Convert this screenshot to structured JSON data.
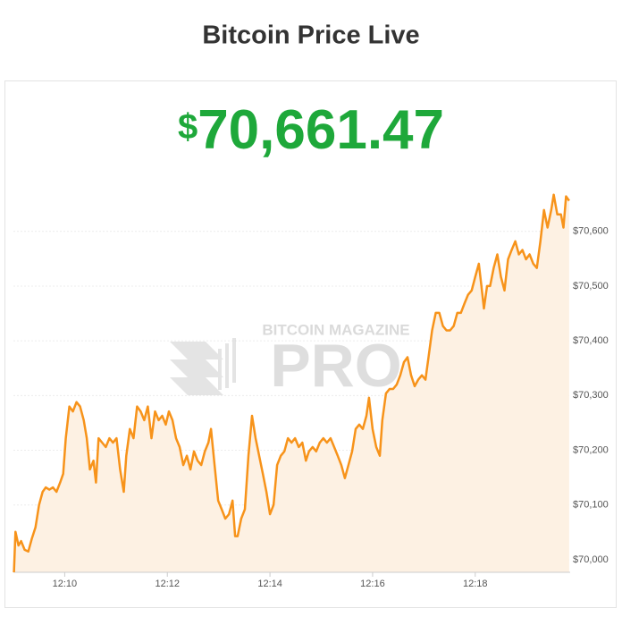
{
  "header": {
    "title": "Bitcoin Price Live"
  },
  "price": {
    "symbol": "$",
    "value": "70,661.47"
  },
  "watermark": {
    "top": "BITCOIN MAGAZINE",
    "main": "PRO"
  },
  "chart_data": {
    "type": "area",
    "x": [
      9.01,
      9.04,
      9.1,
      9.15,
      9.22,
      9.29,
      9.36,
      9.43,
      9.5,
      9.57,
      9.63,
      9.7,
      9.77,
      9.84,
      9.91,
      9.97,
      10.02,
      10.09,
      10.16,
      10.23,
      10.3,
      10.37,
      10.43,
      10.49,
      10.56,
      10.61,
      10.66,
      10.73,
      10.8,
      10.87,
      10.94,
      11.01,
      11.08,
      11.15,
      11.2,
      11.27,
      11.34,
      11.41,
      11.48,
      11.55,
      11.62,
      11.69,
      11.76,
      11.83,
      11.9,
      11.97,
      12.03,
      12.1,
      12.17,
      12.24,
      12.31,
      12.38,
      12.45,
      12.52,
      12.59,
      12.66,
      12.73,
      12.8,
      12.85,
      12.92,
      12.99,
      13.06,
      13.13,
      13.2,
      13.27,
      13.32,
      13.37,
      13.44,
      13.51,
      13.58,
      13.65,
      13.72,
      13.79,
      13.86,
      13.93,
      14.0,
      14.07,
      14.14,
      14.21,
      14.28,
      14.35,
      14.42,
      14.49,
      14.56,
      14.63,
      14.7,
      14.76,
      14.83,
      14.9,
      14.97,
      15.04,
      15.11,
      15.18,
      15.25,
      15.32,
      15.39,
      15.46,
      15.53,
      15.6,
      15.67,
      15.74,
      15.81,
      15.88,
      15.93,
      16.0,
      16.07,
      16.14,
      16.19,
      16.26,
      16.33,
      16.4,
      16.47,
      16.54,
      16.61,
      16.68,
      16.75,
      16.82,
      16.89,
      16.96,
      17.03,
      17.09,
      17.16,
      17.23,
      17.3,
      17.37,
      17.44,
      17.51,
      17.58,
      17.65,
      17.72,
      17.79,
      17.86,
      17.93,
      18.0,
      18.07,
      18.12,
      18.17,
      18.23,
      18.29,
      18.36,
      18.43,
      18.5,
      18.57,
      18.64,
      18.71,
      18.78,
      18.85,
      18.92,
      18.99,
      19.06,
      19.13,
      19.2,
      19.27,
      19.34,
      19.41,
      19.48,
      19.53,
      19.6,
      19.67,
      19.72,
      19.77,
      19.83
    ],
    "values": [
      69977,
      70051,
      70026,
      70034,
      70018,
      70015,
      70039,
      70059,
      70100,
      70124,
      70132,
      70128,
      70132,
      70124,
      70141,
      70157,
      70222,
      70280,
      70271,
      70288,
      70280,
      70255,
      70222,
      70165,
      70181,
      70141,
      70222,
      70214,
      70206,
      70222,
      70214,
      70222,
      70165,
      70124,
      70190,
      70239,
      70222,
      70280,
      70271,
      70255,
      70280,
      70222,
      70271,
      70255,
      70263,
      70247,
      70271,
      70255,
      70222,
      70206,
      70173,
      70190,
      70165,
      70198,
      70181,
      70173,
      70198,
      70214,
      70239,
      70173,
      70108,
      70092,
      70075,
      70083,
      70108,
      70043,
      70043,
      70075,
      70092,
      70190,
      70263,
      70222,
      70190,
      70157,
      70124,
      70083,
      70100,
      70173,
      70190,
      70198,
      70222,
      70214,
      70222,
      70206,
      70214,
      70181,
      70198,
      70206,
      70198,
      70214,
      70222,
      70214,
      70222,
      70206,
      70190,
      70173,
      70149,
      70173,
      70198,
      70239,
      70247,
      70239,
      70263,
      70296,
      70239,
      70206,
      70190,
      70255,
      70304,
      70312,
      70312,
      70320,
      70337,
      70361,
      70370,
      70337,
      70317,
      70329,
      70337,
      70329,
      70370,
      70419,
      70451,
      70451,
      70427,
      70419,
      70419,
      70427,
      70451,
      70451,
      70468,
      70484,
      70492,
      70517,
      70541,
      70500,
      70459,
      70500,
      70500,
      70533,
      70558,
      70517,
      70492,
      70549,
      70566,
      70582,
      70558,
      70566,
      70549,
      70558,
      70541,
      70533,
      70582,
      70639,
      70607,
      70639,
      70667,
      70631,
      70631,
      70607,
      70664,
      70656
    ],
    "color": "#f7931a",
    "fill_color": "#fdf1e3",
    "xlim": [
      9.0,
      19.85
    ],
    "ylim": [
      69977,
      70696
    ],
    "xticks": [
      {
        "value": 10,
        "label": "12:10"
      },
      {
        "value": 12,
        "label": "12:12"
      },
      {
        "value": 14,
        "label": "12:14"
      },
      {
        "value": 16,
        "label": "12:16"
      },
      {
        "value": 18,
        "label": "12:18"
      }
    ],
    "yticks": [
      {
        "value": 70000,
        "label": "$70,000"
      },
      {
        "value": 70100,
        "label": "$70,100"
      },
      {
        "value": 70200,
        "label": "$70,200"
      },
      {
        "value": 70300,
        "label": "$70,300"
      },
      {
        "value": 70400,
        "label": "$70,400"
      },
      {
        "value": 70500,
        "label": "$70,500"
      },
      {
        "value": 70600,
        "label": "$70,600"
      }
    ],
    "grid": true
  }
}
